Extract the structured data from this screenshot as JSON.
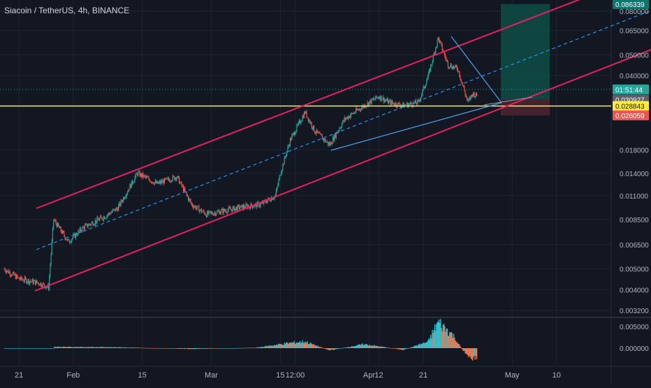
{
  "header": {
    "symbol_line": "Siacoin / TetherUS, 4h, BINANCE"
  },
  "colors": {
    "background": "#131722",
    "grid": "#1f2433",
    "text": "#b2b5be",
    "up": "#26a69a",
    "down": "#ef5350",
    "channel": "#e91e63",
    "midline": "#2196f3",
    "triangle": "#4aa3f0",
    "level": "#ffeb3b",
    "target_zone": "#0f4d47",
    "stop_zone": "#4a2430"
  },
  "price_axis": {
    "ticks": [
      "0.080000",
      "0.065000",
      "0.050000",
      "0.040000",
      "0.030927",
      "0.028843",
      "0.026059",
      "0.018000",
      "0.014000",
      "0.011000",
      "0.008500",
      "0.006500",
      "0.005000",
      "0.004000",
      "0.003200"
    ],
    "labels": [
      {
        "text": "0.086339",
        "price": 0.086339,
        "bg": "#0f766e",
        "fg": "#ffffff"
      },
      {
        "text": "01:51:44",
        "price": 0.0345,
        "bg": "#26a69a",
        "fg": "#ffffff"
      },
      {
        "text": "0.030927",
        "price": 0.030927,
        "bg": "#5d606b",
        "fg": "#ffffff"
      },
      {
        "text": "0.028843",
        "price": 0.028843,
        "bg": "#ffeb3b",
        "fg": "#131722"
      },
      {
        "text": "0.026059",
        "price": 0.026059,
        "bg": "#ef5350",
        "fg": "#ffffff"
      }
    ]
  },
  "osc_axis": {
    "ticks": [
      "0.005000",
      "0.000000"
    ]
  },
  "time_axis": {
    "ticks": [
      "21",
      "Feb",
      "15",
      "Mar",
      "15",
      "12:00",
      "Apr",
      "12",
      "21",
      "May",
      "10"
    ]
  },
  "chart_data": {
    "type": "candlestick",
    "pair": "Siacoin / TetherUS",
    "timeframe": "4h",
    "exchange": "BINANCE",
    "y_scale": "log",
    "ylim": [
      0.0031,
      0.086
    ],
    "close_path": [
      [
        "Jan 18",
        0.005
      ],
      [
        "Jan 21",
        0.0045
      ],
      [
        "Jan 25",
        0.0043
      ],
      [
        "Jan 27",
        0.0041
      ],
      [
        "Jan 28",
        0.0085
      ],
      [
        "Jan 31",
        0.0067
      ],
      [
        "Feb 3",
        0.0078
      ],
      [
        "Feb 7",
        0.0087
      ],
      [
        "Feb 10",
        0.0096
      ],
      [
        "Feb 14",
        0.014
      ],
      [
        "Feb 18",
        0.0125
      ],
      [
        "Feb 22",
        0.0135
      ],
      [
        "Feb 25",
        0.01
      ],
      [
        "Feb 28",
        0.009
      ],
      [
        "Mar 3",
        0.0093
      ],
      [
        "Mar 7",
        0.0097
      ],
      [
        "Mar 11",
        0.01
      ],
      [
        "Mar 14",
        0.011
      ],
      [
        "Mar 15",
        0.014
      ],
      [
        "Mar 17",
        0.02
      ],
      [
        "Mar 20",
        0.027
      ],
      [
        "Mar 22",
        0.022
      ],
      [
        "Mar 25",
        0.019
      ],
      [
        "Mar 28",
        0.025
      ],
      [
        "Apr 1",
        0.029
      ],
      [
        "Apr 4",
        0.032
      ],
      [
        "Apr 6",
        0.03
      ],
      [
        "Apr 9",
        0.029
      ],
      [
        "Apr 12",
        0.03
      ],
      [
        "Apr 14",
        0.04
      ],
      [
        "Apr 16",
        0.06
      ],
      [
        "Apr 18",
        0.045
      ],
      [
        "Apr 20",
        0.043
      ],
      [
        "Apr 22",
        0.03
      ],
      [
        "Apr 23",
        0.033
      ],
      [
        "Apr 24",
        0.032
      ]
    ],
    "levels": [
      {
        "name": "",
        "price": 0.028843
      }
    ],
    "oscillator": {
      "ylim": [
        -0.003,
        0.007
      ],
      "values_by_date": [
        [
          "Jan 28",
          0.0003
        ],
        [
          "Feb 10",
          0.0002
        ],
        [
          "Feb 25",
          -0.0002
        ],
        [
          "Mar 10",
          0.0001
        ],
        [
          "Mar 17",
          0.0012
        ],
        [
          "Mar 20",
          0.0015
        ],
        [
          "Mar 25",
          -0.0005
        ],
        [
          "Apr 1",
          0.0009
        ],
        [
          "Apr 9",
          -0.0004
        ],
        [
          "Apr 14",
          0.0015
        ],
        [
          "Apr 16",
          0.006
        ],
        [
          "Apr 19",
          0.003
        ],
        [
          "Apr 21",
          -0.0005
        ],
        [
          "Apr 23",
          -0.0025
        ],
        [
          "Apr 24",
          -0.002
        ]
      ]
    }
  }
}
